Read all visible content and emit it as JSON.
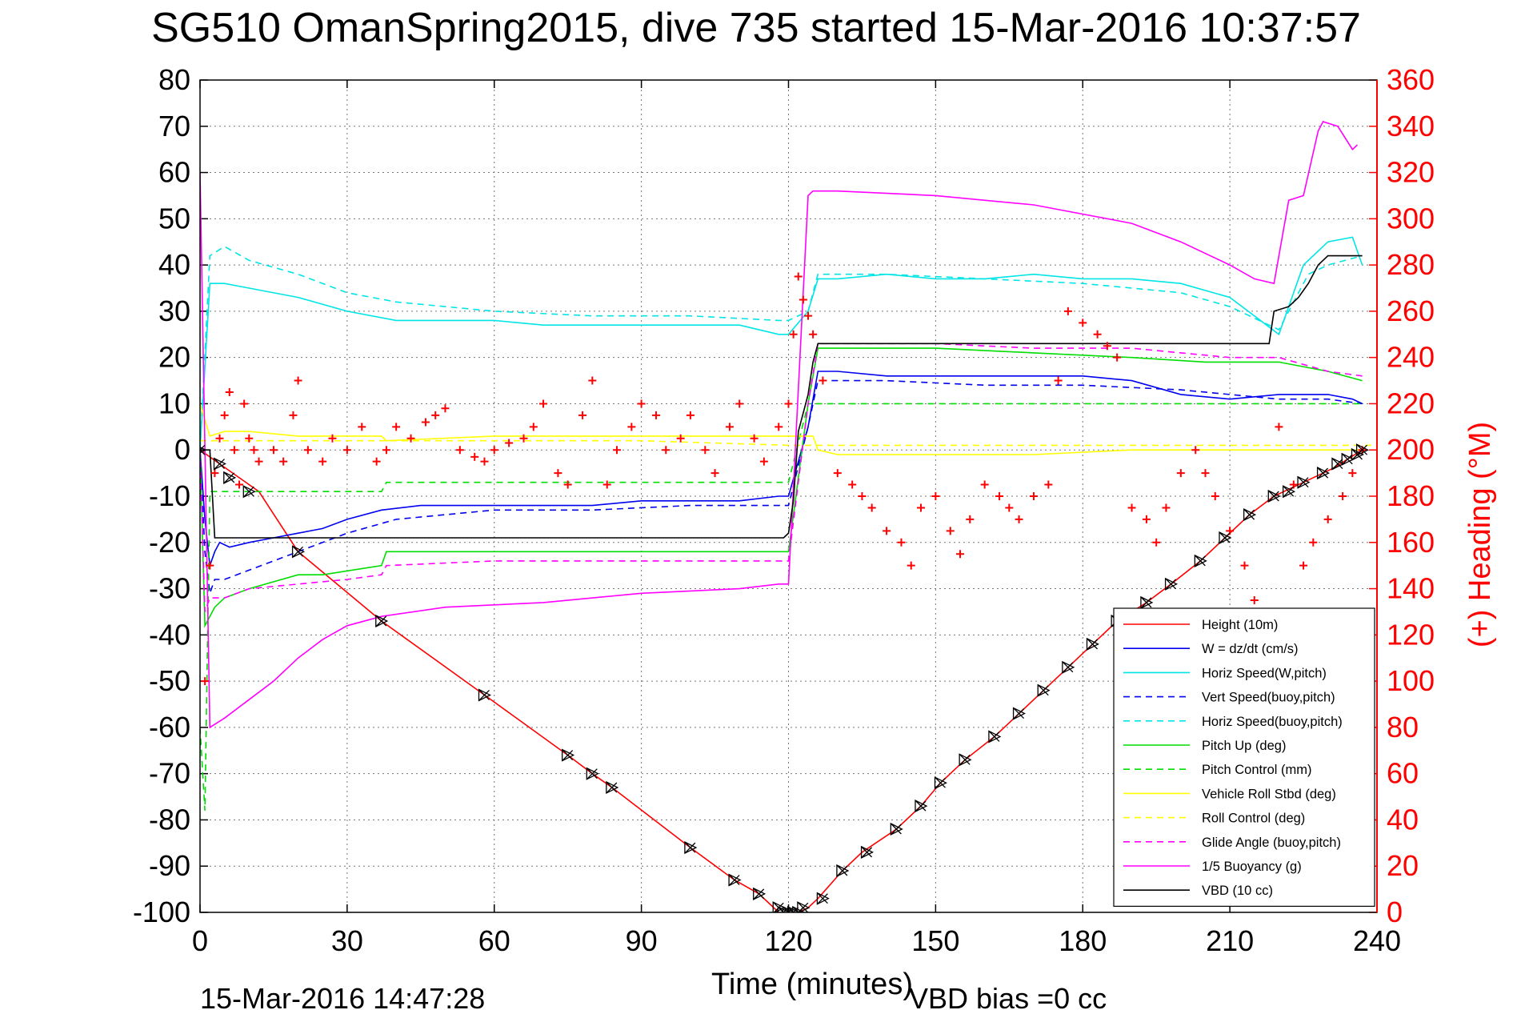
{
  "title": "SG510 OmanSpring2015, dive 735 started 15-Mar-2016 10:37:57",
  "footer": {
    "timestamp": "15-Mar-2016 14:47:28",
    "vbd_bias": "VBD bias =0 cc"
  },
  "chart_data": {
    "type": "line",
    "title": "SG510 OmanSpring2015, dive 735 started 15-Mar-2016 10:37:57",
    "xlabel": "Time (minutes)",
    "ylabel": "",
    "y2label": "(+) Heading (°M)",
    "xlim": [
      0,
      240
    ],
    "ylim": [
      -100,
      80
    ],
    "y2lim": [
      0,
      360
    ],
    "grid": true,
    "legend_position": "bottom-right",
    "x_ticks": [
      "0",
      "30",
      "60",
      "90",
      "120",
      "150",
      "180",
      "210",
      "240"
    ],
    "y_ticks": [
      "80",
      "70",
      "60",
      "50",
      "40",
      "30",
      "20",
      "10",
      "0",
      "-10",
      "-20",
      "-30",
      "-40",
      "-50",
      "-60",
      "-70",
      "-80",
      "-90",
      "-100"
    ],
    "y2_ticks": [
      "360",
      "340",
      "320",
      "300",
      "280",
      "260",
      "240",
      "220",
      "200",
      "180",
      "160",
      "140",
      "120",
      "100",
      "80",
      "60",
      "40",
      "20",
      "0"
    ],
    "series": [
      {
        "name": "Height (10m)",
        "color": "#ff0000",
        "dash": "solid",
        "axis": "left",
        "x": [
          0,
          4,
          8,
          12,
          20,
          37,
          58,
          75,
          80,
          84,
          100,
          109,
          114,
          118,
          120,
          122,
          124,
          126,
          131,
          135,
          142,
          147,
          151,
          156,
          162,
          167,
          172,
          177,
          182,
          187,
          193,
          198,
          204,
          209,
          214,
          219,
          225,
          231,
          237
        ],
        "y": [
          0,
          -3,
          -6,
          -9,
          -22,
          -37,
          -53,
          -66,
          -70,
          -73,
          -86,
          -93,
          -96,
          -100,
          -101,
          -100,
          -99,
          -97,
          -91,
          -87,
          -82,
          -77,
          -72,
          -67,
          -62,
          -57,
          -52,
          -47,
          -42,
          -37,
          -33,
          -29,
          -24,
          -19,
          -14,
          -10,
          -7,
          -4,
          0
        ]
      },
      {
        "name": "W = dz/dt (cm/s)",
        "color": "#0000ee",
        "dash": "solid",
        "axis": "left",
        "x": [
          0,
          1,
          2,
          3,
          4,
          6,
          10,
          15,
          20,
          25,
          30,
          37,
          45,
          55,
          60,
          70,
          80,
          90,
          100,
          110,
          118,
          120,
          124,
          126,
          130,
          140,
          150,
          160,
          170,
          180,
          190,
          200,
          210,
          220,
          225,
          230,
          235,
          237
        ],
        "y": [
          0,
          -15,
          -25,
          -22,
          -20,
          -21,
          -20,
          -19,
          -18,
          -17,
          -15,
          -13,
          -12,
          -12,
          -12,
          -12,
          -12,
          -11,
          -11,
          -11,
          -10,
          -10,
          5,
          17,
          17,
          16,
          16,
          16,
          16,
          16,
          15,
          12,
          11,
          12,
          12,
          12,
          11,
          10
        ]
      },
      {
        "name": "Horiz Speed(W,pitch)",
        "color": "#00e5e5",
        "dash": "solid",
        "axis": "left",
        "x": [
          0,
          2,
          5,
          10,
          20,
          30,
          40,
          50,
          60,
          70,
          80,
          90,
          100,
          110,
          118,
          120,
          124,
          126,
          130,
          140,
          150,
          160,
          170,
          180,
          190,
          200,
          210,
          220,
          225,
          230,
          235,
          237
        ],
        "y": [
          0,
          36,
          36,
          35,
          33,
          30,
          28,
          28,
          28,
          27,
          27,
          27,
          27,
          27,
          25,
          25,
          30,
          37,
          37,
          38,
          37,
          37,
          38,
          37,
          37,
          36,
          33,
          25,
          40,
          45,
          46,
          40
        ]
      },
      {
        "name": "Vert Speed(buoy,pitch)",
        "color": "#0000ee",
        "dash": "dash",
        "axis": "left",
        "x": [
          0,
          1,
          2,
          3,
          5,
          10,
          20,
          30,
          40,
          60,
          80,
          100,
          118,
          120,
          124,
          126,
          140,
          160,
          180,
          200,
          220,
          230,
          237
        ],
        "y": [
          0,
          -22,
          -31,
          -28,
          -28,
          -26,
          -22,
          -18,
          -15,
          -13,
          -13,
          -12,
          -12,
          -12,
          5,
          15,
          15,
          14,
          14,
          13,
          11,
          11,
          10
        ]
      },
      {
        "name": "Horiz Speed(buoy,pitch)",
        "color": "#00e5e5",
        "dash": "dash",
        "axis": "left",
        "x": [
          0,
          2,
          5,
          10,
          20,
          30,
          40,
          60,
          80,
          100,
          118,
          120,
          124,
          126,
          140,
          160,
          180,
          200,
          210,
          220,
          222,
          226,
          230,
          237
        ],
        "y": [
          0,
          42,
          44,
          41,
          38,
          34,
          32,
          30,
          29,
          29,
          28,
          28,
          30,
          38,
          38,
          37,
          36,
          34,
          31,
          26,
          30,
          38,
          40,
          42
        ]
      },
      {
        "name": "Pitch Up (deg)",
        "color": "#00dd00",
        "dash": "solid",
        "axis": "left",
        "x": [
          0,
          1,
          2,
          3,
          5,
          10,
          20,
          25,
          37,
          38,
          60,
          75,
          100,
          118,
          120,
          124,
          126,
          150,
          170,
          190,
          205,
          220,
          230,
          237
        ],
        "y": [
          0,
          -38,
          -36,
          -34,
          -32,
          -30,
          -27,
          -27,
          -25,
          -22,
          -22,
          -22,
          -22,
          -22,
          -22,
          10,
          22,
          22,
          21,
          20,
          19,
          19,
          17,
          15
        ]
      },
      {
        "name": "Pitch Control (mm)",
        "color": "#00dd00",
        "dash": "dash",
        "axis": "left",
        "x": [
          0,
          1,
          2,
          5,
          20,
          37,
          38,
          60,
          118,
          120,
          124,
          126,
          220,
          230,
          237
        ],
        "y": [
          -60,
          -78,
          -9,
          -9,
          -9,
          -9,
          -7,
          -7,
          -7,
          -7,
          10,
          10,
          10,
          10,
          10
        ]
      },
      {
        "name": "Vehicle Roll Stbd (deg)",
        "color": "#ffff00",
        "dash": "solid",
        "axis": "left",
        "x": [
          0,
          2,
          5,
          10,
          20,
          30,
          37,
          38,
          60,
          80,
          100,
          118,
          120,
          125,
          126,
          130,
          150,
          170,
          190,
          210,
          225,
          237
        ],
        "y": [
          10,
          3,
          4,
          4,
          3,
          3,
          3,
          2,
          3,
          3,
          3,
          3,
          3,
          3,
          0,
          -1,
          -1,
          -1,
          0,
          0,
          0,
          0
        ]
      },
      {
        "name": "Roll Control (deg)",
        "color": "#ffff00",
        "dash": "dash",
        "axis": "left",
        "x": [
          0,
          30,
          60,
          90,
          120,
          150,
          180,
          210,
          240
        ],
        "y": [
          2,
          2,
          2,
          2,
          1,
          1,
          1,
          1,
          1
        ]
      },
      {
        "name": "Glide Angle (buoy,pitch)",
        "color": "#ff00ff",
        "dash": "dash",
        "axis": "left",
        "x": [
          0,
          1,
          2,
          5,
          10,
          20,
          30,
          37,
          38,
          60,
          80,
          100,
          118,
          120,
          124,
          126,
          150,
          170,
          190,
          200,
          210,
          220,
          230,
          237
        ],
        "y": [
          0,
          -35,
          -32,
          -32,
          -30,
          -29,
          -28,
          -27,
          -25,
          -24,
          -24,
          -24,
          -24,
          -24,
          10,
          23,
          23,
          22,
          22,
          21,
          20,
          20,
          17,
          16
        ]
      },
      {
        "name": "1/5 Buoyancy (g)",
        "color": "#ff00ff",
        "dash": "solid",
        "axis": "left",
        "x": [
          0,
          2,
          5,
          10,
          15,
          20,
          25,
          30,
          37,
          50,
          70,
          90,
          110,
          118,
          120,
          124,
          125,
          127,
          130,
          150,
          170,
          190,
          200,
          210,
          215,
          219,
          222,
          225,
          228,
          229,
          232,
          235,
          236
        ],
        "y": [
          60,
          -60,
          -58,
          -54,
          -50,
          -45,
          -41,
          -38,
          -36,
          -34,
          -33,
          -31,
          -30,
          -29,
          -29,
          55,
          56,
          56,
          56,
          55,
          53,
          49,
          45,
          40,
          37,
          36,
          54,
          55,
          69,
          71,
          70,
          65,
          66
        ]
      },
      {
        "name": "VBD (10 cc)",
        "color": "#000000",
        "dash": "solid",
        "axis": "left",
        "x": [
          0,
          2,
          3,
          20,
          40,
          60,
          80,
          100,
          119,
          120,
          121,
          122,
          124,
          125,
          126,
          150,
          180,
          210,
          218,
          219,
          222,
          224,
          226,
          228,
          230,
          237
        ],
        "y": [
          0,
          0,
          -19,
          -19,
          -19,
          -19,
          -19,
          -19,
          -19,
          -18,
          -11,
          4,
          12,
          19,
          23,
          23,
          23,
          23,
          23,
          30,
          31,
          33,
          36,
          40,
          42,
          42
        ]
      }
    ],
    "scatter": [
      {
        "name": "Heading",
        "color": "#ff0000",
        "marker": "+",
        "axis": "right",
        "x": [
          1,
          2,
          3,
          4,
          5,
          6,
          7,
          8,
          9,
          10,
          11,
          12,
          15,
          17,
          19,
          20,
          22,
          25,
          27,
          30,
          33,
          36,
          38,
          40,
          43,
          46,
          48,
          50,
          53,
          56,
          58,
          60,
          63,
          66,
          68,
          70,
          73,
          75,
          78,
          80,
          83,
          85,
          88,
          90,
          93,
          95,
          98,
          100,
          103,
          105,
          108,
          110,
          113,
          115,
          118,
          120,
          121,
          122,
          123,
          124,
          125,
          127,
          130,
          133,
          135,
          137,
          140,
          143,
          145,
          147,
          150,
          153,
          155,
          157,
          160,
          163,
          165,
          167,
          170,
          173,
          175,
          177,
          180,
          183,
          185,
          187,
          190,
          193,
          195,
          197,
          200,
          203,
          205,
          207,
          210,
          213,
          215,
          217,
          220,
          223,
          225,
          227,
          230,
          233,
          235,
          237
        ],
        "y": [
          100,
          150,
          190,
          205,
          215,
          225,
          200,
          185,
          220,
          205,
          200,
          195,
          200,
          195,
          215,
          230,
          200,
          195,
          205,
          200,
          210,
          195,
          200,
          210,
          205,
          212,
          215,
          218,
          200,
          197,
          195,
          200,
          203,
          205,
          210,
          220,
          190,
          185,
          215,
          230,
          185,
          200,
          210,
          220,
          215,
          200,
          205,
          215,
          200,
          190,
          210,
          220,
          205,
          195,
          210,
          220,
          250,
          275,
          265,
          258,
          250,
          230,
          190,
          185,
          180,
          175,
          165,
          160,
          150,
          175,
          180,
          165,
          155,
          170,
          185,
          180,
          175,
          170,
          180,
          185,
          230,
          260,
          255,
          250,
          245,
          240,
          175,
          170,
          160,
          175,
          190,
          200,
          190,
          180,
          165,
          150,
          135,
          130,
          210,
          185,
          150,
          160,
          170,
          180,
          190,
          200
        ]
      }
    ],
    "markers": [
      {
        "name": "depth markers",
        "color": "#000000",
        "symbol": "triangle-x",
        "axis": "left",
        "x": [
          0,
          4,
          6,
          10,
          20,
          37,
          58,
          75,
          80,
          84,
          100,
          109,
          114,
          118,
          119,
          120,
          121,
          122,
          123,
          127,
          131,
          136,
          142,
          147,
          151,
          156,
          162,
          167,
          172,
          177,
          182,
          187,
          193,
          198,
          204,
          209,
          214,
          219,
          222,
          225,
          229,
          232,
          234,
          236,
          237
        ],
        "y": [
          0,
          -3,
          -6,
          -9,
          -22,
          -37,
          -53,
          -66,
          -70,
          -73,
          -86,
          -93,
          -96,
          -99,
          -100,
          -100,
          -100,
          -100,
          -99,
          -97,
          -91,
          -87,
          -82,
          -77,
          -72,
          -67,
          -62,
          -57,
          -52,
          -47,
          -42,
          -37,
          -33,
          -29,
          -24,
          -19,
          -14,
          -10,
          -9,
          -7,
          -5,
          -3,
          -2,
          -1,
          0
        ]
      }
    ]
  }
}
